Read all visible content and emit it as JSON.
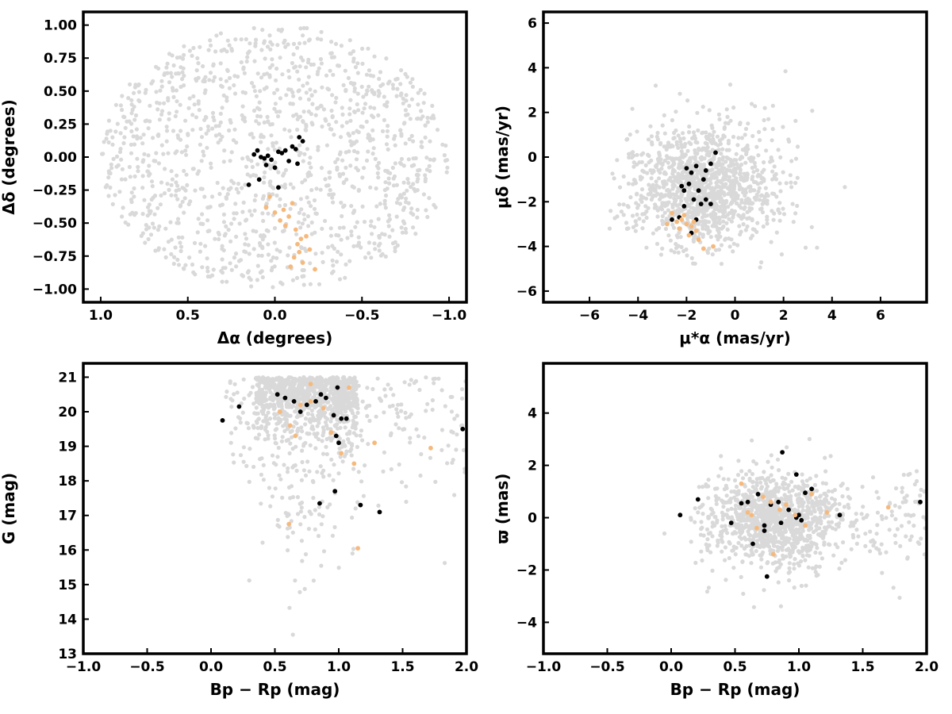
{
  "figure": {
    "colors": {
      "background": "#d9d9d9",
      "members": "#000000",
      "tail": "#f6b97d",
      "frame": "#000000"
    }
  },
  "chart_data": [
    {
      "type": "scatter",
      "name": "sky-position",
      "xlabel": "Δα (degrees)",
      "ylabel": "Δδ (degrees)",
      "xlim": [
        1.1,
        -1.1
      ],
      "ylim": [
        -1.1,
        1.1
      ],
      "xticks": [
        1.0,
        0.5,
        0.0,
        -0.5,
        -1.0
      ],
      "xtick_labels": [
        "1.0",
        "0.5",
        "0.0",
        "−0.5",
        "−1.0"
      ],
      "yticks": [
        1.0,
        0.75,
        0.5,
        0.25,
        0.0,
        -0.25,
        -0.5,
        -0.75,
        -1.0
      ],
      "ytick_labels": [
        "1.00",
        "0.75",
        "0.50",
        "0.25",
        "0.00",
        "−0.25",
        "−0.50",
        "−0.75",
        "−1.00"
      ],
      "background_field": "approx. 1300 field stars uniformly distributed within a circle of radius 1 degree",
      "series": [
        {
          "color": "#000000",
          "x": [
            0.12,
            0.1,
            0.08,
            0.06,
            0.04,
            0.02,
            -0.02,
            -0.04,
            -0.06,
            -0.1,
            -0.12,
            -0.14,
            -0.16,
            0.05,
            0.0,
            -0.08,
            -0.13,
            0.09,
            0.15,
            -0.02
          ],
          "y": [
            0.02,
            0.05,
            0.0,
            -0.01,
            0.01,
            -0.02,
            0.04,
            0.03,
            0.05,
            0.08,
            0.06,
            0.15,
            0.12,
            -0.06,
            -0.08,
            -0.03,
            -0.05,
            -0.17,
            -0.21,
            -0.23
          ]
        },
        {
          "color": "#f6b97d",
          "x": [
            0.05,
            0.0,
            -0.05,
            -0.1,
            -0.08,
            -0.03,
            -0.12,
            -0.15,
            -0.18,
            -0.14,
            -0.11,
            -0.16,
            -0.2,
            -0.23,
            0.03,
            -0.06,
            -0.13,
            -0.09
          ],
          "y": [
            -0.38,
            -0.42,
            -0.4,
            -0.35,
            -0.45,
            -0.48,
            -0.55,
            -0.62,
            -0.6,
            -0.72,
            -0.76,
            -0.8,
            -0.7,
            -0.85,
            -0.3,
            -0.52,
            -0.66,
            -0.83
          ]
        }
      ]
    },
    {
      "type": "scatter",
      "name": "proper-motion",
      "xlabel": "μ*α (mas/yr)",
      "ylabel": "μδ (mas/yr)",
      "xlim": [
        -7.9,
        7.9
      ],
      "ylim": [
        -6.5,
        6.5
      ],
      "xticks": [
        -6,
        -4,
        -2,
        0,
        2,
        4,
        6
      ],
      "xtick_labels": [
        "−6",
        "−4",
        "−2",
        "0",
        "2",
        "4",
        "6"
      ],
      "yticks": [
        6,
        4,
        2,
        0,
        -2,
        -4,
        -6
      ],
      "ytick_labels": [
        "6",
        "4",
        "2",
        "0",
        "−2",
        "−4",
        "−6"
      ],
      "background_field": "approx. 1300 field stars concentrated around (-1, -1.5) with spread ~1.6 mas/yr",
      "series": [
        {
          "color": "#000000",
          "x": [
            -2.0,
            -1.8,
            -1.6,
            -1.2,
            -1.0,
            -0.8,
            -2.2,
            -1.9,
            -1.5,
            -1.3,
            -2.1,
            -1.7,
            -1.0,
            -2.3,
            -2.6,
            -2.1,
            -1.8,
            -1.6,
            -1.4,
            -1.2
          ],
          "y": [
            -0.5,
            -0.7,
            -0.4,
            -0.6,
            -0.3,
            0.2,
            -1.3,
            -1.2,
            -1.5,
            -1.0,
            -1.5,
            -1.9,
            -2.1,
            -2.7,
            -2.8,
            -2.2,
            -3.4,
            -2.8,
            -2.1,
            -1.9
          ]
        },
        {
          "color": "#f6b97d",
          "x": [
            -2.6,
            -2.2,
            -2.0,
            -1.8,
            -2.4,
            -1.6,
            -1.9,
            -2.1,
            -1.5,
            -1.3,
            -0.9,
            -2.8,
            -2.3,
            -1.7
          ],
          "y": [
            -2.5,
            -2.8,
            -3.0,
            -3.1,
            -2.9,
            -3.3,
            -3.5,
            -2.6,
            -3.7,
            -4.1,
            -4.0,
            -3.0,
            -3.2,
            -2.9
          ]
        }
      ]
    },
    {
      "type": "scatter",
      "name": "color-magnitude",
      "xlabel": "Bp − Rp (mag)",
      "ylabel": "G (mag)",
      "xlim": [
        -1.0,
        2.0
      ],
      "ylim": [
        13,
        21.4
      ],
      "xticks": [
        -1.0,
        -0.5,
        0.0,
        0.5,
        1.0,
        1.5,
        2.0
      ],
      "xtick_labels": [
        "−1.0",
        "−0.5",
        "0.0",
        "0.5",
        "1.0",
        "1.5",
        "2.0"
      ],
      "yticks": [
        21,
        20,
        19,
        18,
        17,
        16,
        15,
        14,
        13
      ],
      "ytick_labels": [
        "21",
        "20",
        "19",
        "18",
        "17",
        "16",
        "15",
        "14",
        "13"
      ],
      "background_field": "approx. 1300 field stars, dense band at G 19.5–21 for Bp−Rp 0.3–1.1, sparse to brighter magnitudes and redder colors",
      "series": [
        {
          "color": "#000000",
          "x": [
            0.52,
            0.58,
            0.65,
            0.7,
            0.75,
            0.82,
            0.86,
            0.9,
            0.96,
            0.99,
            1.02,
            1.06,
            0.98,
            1.0,
            0.85,
            0.97,
            1.17,
            1.32,
            0.09,
            0.22,
            1.97
          ],
          "y": [
            20.5,
            20.4,
            20.3,
            20.0,
            20.2,
            20.3,
            20.5,
            20.4,
            19.9,
            20.7,
            19.8,
            19.8,
            19.3,
            19.1,
            17.35,
            17.7,
            17.3,
            17.1,
            19.75,
            20.15,
            19.5
          ]
        },
        {
          "color": "#f6b97d",
          "x": [
            0.54,
            0.62,
            0.7,
            0.78,
            0.88,
            0.94,
            1.02,
            1.08,
            1.12,
            1.28,
            0.61,
            1.15,
            1.72,
            0.78,
            0.66
          ],
          "y": [
            20.0,
            19.6,
            20.2,
            20.8,
            20.1,
            19.4,
            18.8,
            20.7,
            18.5,
            19.1,
            16.75,
            16.05,
            18.95,
            20.3,
            19.3
          ]
        }
      ]
    },
    {
      "type": "scatter",
      "name": "parallax",
      "xlabel": "Bp − Rp (mag)",
      "ylabel": "ϖ (mas)",
      "xlim": [
        -1.0,
        2.0
      ],
      "ylim": [
        -5.2,
        5.9
      ],
      "xticks": [
        -1.0,
        -0.5,
        0.0,
        0.5,
        1.0,
        1.5,
        2.0
      ],
      "xtick_labels": [
        "−1.0",
        "−0.5",
        "0.0",
        "0.5",
        "1.0",
        "1.5",
        "2.0"
      ],
      "yticks": [
        4,
        2,
        0,
        -2,
        -4
      ],
      "ytick_labels": [
        "4",
        "2",
        "0",
        "−2",
        "−4"
      ],
      "background_field": "approx. 1300 field stars centered near ϖ = 0 with spread ~0.9 mas, concentrated at Bp−Rp 0.5–1.1",
      "series": [
        {
          "color": "#000000",
          "x": [
            0.07,
            0.21,
            0.47,
            0.55,
            0.6,
            0.68,
            0.73,
            0.75,
            0.78,
            0.84,
            0.87,
            0.92,
            0.98,
            1.0,
            1.02,
            1.05,
            1.1,
            0.64,
            0.73,
            0.98,
            0.86,
            1.32,
            1.95
          ],
          "y": [
            0.1,
            0.7,
            -0.2,
            0.55,
            0.6,
            0.9,
            -0.3,
            -2.25,
            0.5,
            0.6,
            2.5,
            0.3,
            1.65,
            0.1,
            -0.1,
            0.95,
            1.1,
            -1.0,
            -0.5,
            0.0,
            -0.2,
            0.1,
            0.6
          ]
        },
        {
          "color": "#f6b97d",
          "x": [
            0.55,
            0.6,
            0.67,
            0.72,
            0.8,
            0.85,
            0.9,
            0.97,
            1.05,
            1.1,
            0.63,
            0.78,
            1.22,
            1.7
          ],
          "y": [
            1.3,
            0.2,
            -0.4,
            0.8,
            -1.4,
            0.3,
            0.5,
            0.1,
            -0.3,
            0.9,
            0.1,
            0.6,
            0.2,
            0.4
          ]
        }
      ]
    }
  ]
}
